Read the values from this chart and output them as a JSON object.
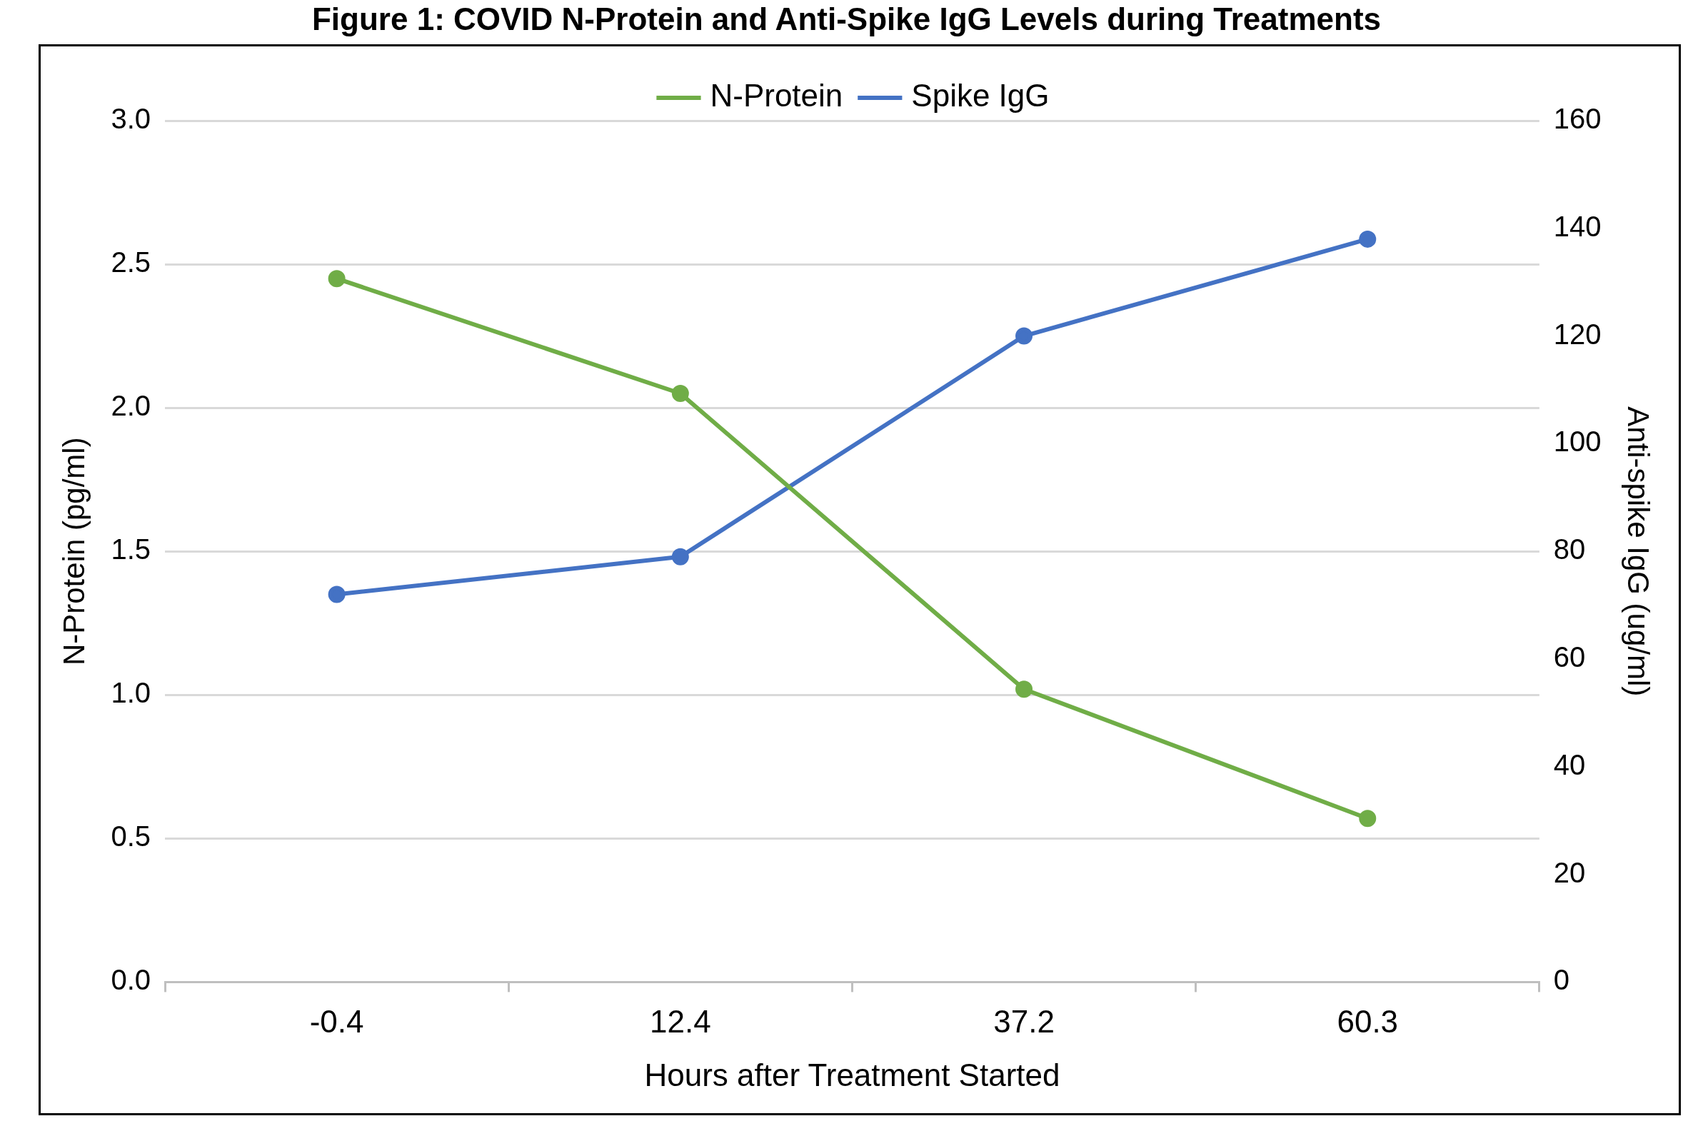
{
  "chart_data": {
    "type": "line",
    "title": "Figure 1: COVID N-Protein and Anti-Spike IgG Levels during Treatments",
    "xlabel": "Hours after Treatment Started",
    "ylabel": "N-Protein (pg/ml)",
    "y2label": "Anti-spike IgG (ug/ml)",
    "categories": [
      "-0.4",
      "12.4",
      "37.2",
      "60.3"
    ],
    "series": [
      {
        "name": "N-Protein",
        "color": "#70ad47",
        "values": [
          2.45,
          2.05,
          1.02,
          0.57
        ]
      },
      {
        "name": "Spike IgG",
        "color": "#4472c4",
        "axis": "y2",
        "values": [
          72,
          79,
          120,
          138
        ]
      }
    ],
    "ylim": [
      0,
      3
    ],
    "yticks": [
      {
        "value": 0,
        "label": "0.0"
      },
      {
        "value": 0.5,
        "label": "0.5"
      },
      {
        "value": 1,
        "label": "1.0"
      },
      {
        "value": 1.5,
        "label": "1.5"
      },
      {
        "value": 2,
        "label": "2.0"
      },
      {
        "value": 2.5,
        "label": "2.5"
      },
      {
        "value": 3,
        "label": "3.0"
      }
    ],
    "y2lim": [
      0,
      160
    ],
    "y2ticks": [
      0,
      20,
      40,
      60,
      80,
      100,
      120,
      140,
      160
    ],
    "grid": "y",
    "legend": "top",
    "marker": "circle",
    "line_style": "solid"
  }
}
